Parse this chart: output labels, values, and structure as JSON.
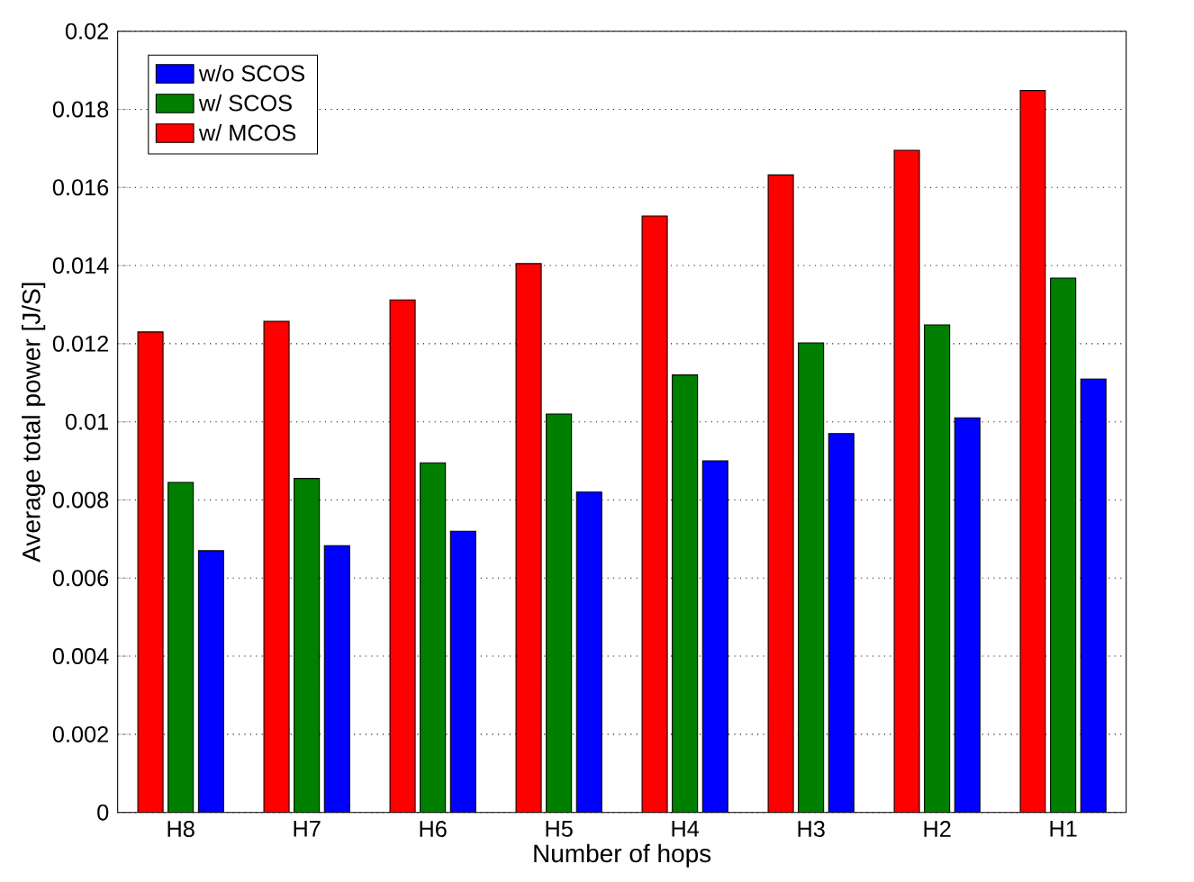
{
  "chart_data": {
    "type": "bar",
    "xlabel": "Number of hops",
    "ylabel": "Average total power [J/S]",
    "categories": [
      "H8",
      "H7",
      "H6",
      "H5",
      "H4",
      "H3",
      "H2",
      "H1"
    ],
    "series": [
      {
        "name": "w/o SCOS",
        "color": "#0000ff",
        "values": [
          0.0067,
          0.00683,
          0.0072,
          0.0082,
          0.009,
          0.0097,
          0.0101,
          0.0111
        ]
      },
      {
        "name": "w/ SCOS",
        "color": "#007f00",
        "values": [
          0.00845,
          0.00855,
          0.00895,
          0.0102,
          0.0112,
          0.01202,
          0.01248,
          0.01368
        ]
      },
      {
        "name": "w/ MCOS",
        "color": "#ff0000",
        "values": [
          0.0123,
          0.01257,
          0.01312,
          0.01405,
          0.01527,
          0.01632,
          0.01695,
          0.01848
        ]
      }
    ],
    "ylim": [
      0,
      0.02
    ],
    "yticks": [
      0,
      0.002,
      0.004,
      0.006,
      0.008,
      0.01,
      0.012,
      0.014,
      0.016,
      0.018,
      0.02
    ],
    "grid": "y",
    "legend": "top left"
  }
}
